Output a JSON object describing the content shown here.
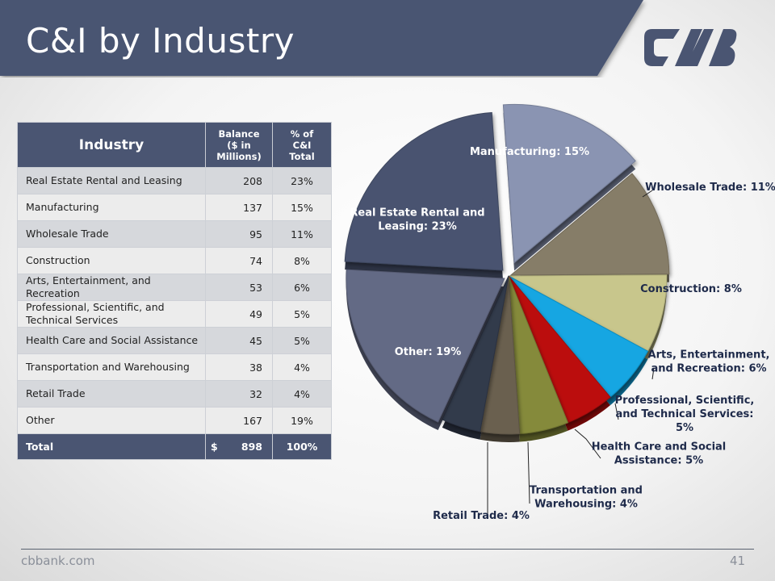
{
  "slide": {
    "title": "C&I by Industry",
    "footer_url": "cbbank.com",
    "page_number": "41",
    "title_bar_color": "#4a5572",
    "logo_color": "#4a5572"
  },
  "table": {
    "headers": {
      "industry": "Industry",
      "balance_line1": "Balance",
      "balance_line2": "($ in Millions)",
      "pct_line1": "% of",
      "pct_line2": "C&I",
      "pct_line3": "Total"
    },
    "rows": [
      {
        "industry": "Real Estate Rental and Leasing",
        "balance": "208",
        "pct": "23%"
      },
      {
        "industry": "Manufacturing",
        "balance": "137",
        "pct": "15%"
      },
      {
        "industry": "Wholesale Trade",
        "balance": "95",
        "pct": "11%"
      },
      {
        "industry": "Construction",
        "balance": "74",
        "pct": "8%"
      },
      {
        "industry": "Arts, Entertainment, and Recreation",
        "balance": "53",
        "pct": "6%"
      },
      {
        "industry": "Professional, Scientific, and Technical Services",
        "balance": "49",
        "pct": "5%"
      },
      {
        "industry": "Health Care and Social Assistance",
        "balance": "45",
        "pct": "5%"
      },
      {
        "industry": "Transportation and Warehousing",
        "balance": "38",
        "pct": "4%"
      },
      {
        "industry": "Retail Trade",
        "balance": "32",
        "pct": "4%"
      },
      {
        "industry": "Other",
        "balance": "167",
        "pct": "19%"
      }
    ],
    "total": {
      "label": "Total",
      "currency": "$",
      "balance": "898",
      "pct": "100%"
    }
  },
  "chart_data": {
    "type": "pie",
    "slices": [
      {
        "name": "Manufacturing",
        "value": 15,
        "label_lines": [
          "Manufacturing: 15%"
        ],
        "color": "#8a94b2",
        "text_color": "#ffffff"
      },
      {
        "name": "Wholesale Trade",
        "value": 11,
        "label_lines": [
          "Wholesale Trade: 11%"
        ],
        "color": "#867d68",
        "text_color": "#1e2a4a"
      },
      {
        "name": "Construction",
        "value": 8,
        "label_lines": [
          "Construction: 8%"
        ],
        "color": "#c8c68c",
        "text_color": "#1e2a4a"
      },
      {
        "name": "Arts, Entertainment, and Recreation",
        "value": 6,
        "label_lines": [
          "Arts, Entertainment,",
          "and Recreation: 6%"
        ],
        "color": "#12a6e2",
        "text_color": "#1e2a4a"
      },
      {
        "name": "Professional, Scientific, and Technical Services",
        "value": 5,
        "label_lines": [
          "Professional, Scientific,",
          "and Technical Services:",
          "5%"
        ],
        "color": "#bb0b0b",
        "text_color": "#1e2a4a"
      },
      {
        "name": "Health Care and Social Assistance",
        "value": 5,
        "label_lines": [
          "Health Care and Social",
          "Assistance: 5%"
        ],
        "color": "#858a3a",
        "text_color": "#1e2a4a"
      },
      {
        "name": "Transportation and Warehousing",
        "value": 4,
        "label_lines": [
          "Transportation and",
          "Warehousing: 4%"
        ],
        "color": "#6b6150",
        "text_color": "#1e2a4a"
      },
      {
        "name": "Retail Trade",
        "value": 4,
        "label_lines": [
          "Retail Trade: 4%"
        ],
        "color": "#323a4c",
        "text_color": "#1e2a4a"
      },
      {
        "name": "Other",
        "value": 19,
        "label_lines": [
          "Other: 19%"
        ],
        "color": "#646a85",
        "text_color": "#ffffff"
      },
      {
        "name": "Real Estate Rental and Leasing",
        "value": 23,
        "label_lines": [
          "Real Estate Rental and",
          "Leasing: 23%"
        ],
        "color": "#49536f",
        "text_color": "#ffffff"
      }
    ]
  }
}
